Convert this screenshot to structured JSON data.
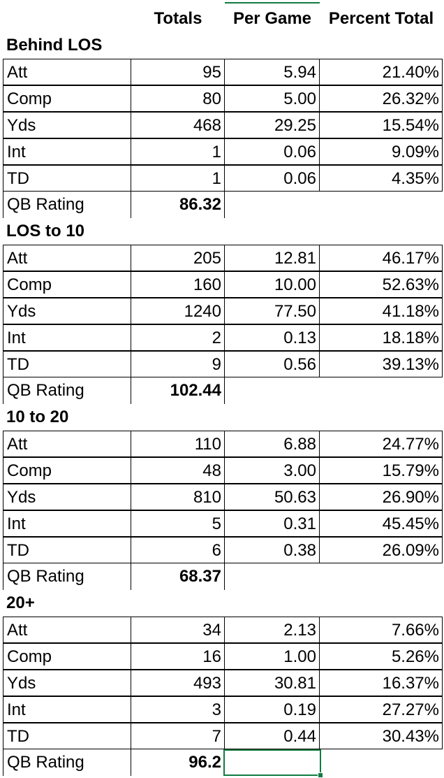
{
  "headers": {
    "totals": "Totals",
    "per_game": "Per Game",
    "percent_total": "Percent Total"
  },
  "sections": [
    {
      "title": "Behind LOS",
      "rows": [
        {
          "label": "Att",
          "totals": "95",
          "per_game": "5.94",
          "percent": "21.40%"
        },
        {
          "label": "Comp",
          "totals": "80",
          "per_game": "5.00",
          "percent": "26.32%"
        },
        {
          "label": "Yds",
          "totals": "468",
          "per_game": "29.25",
          "percent": "15.54%"
        },
        {
          "label": "Int",
          "totals": "1",
          "per_game": "0.06",
          "percent": "9.09%"
        },
        {
          "label": "TD",
          "totals": "1",
          "per_game": "0.06",
          "percent": "4.35%"
        }
      ],
      "rating_label": "QB Rating",
      "rating_value": "86.32"
    },
    {
      "title": "LOS to 10",
      "rows": [
        {
          "label": "Att",
          "totals": "205",
          "per_game": "12.81",
          "percent": "46.17%"
        },
        {
          "label": "Comp",
          "totals": "160",
          "per_game": "10.00",
          "percent": "52.63%"
        },
        {
          "label": "Yds",
          "totals": "1240",
          "per_game": "77.50",
          "percent": "41.18%"
        },
        {
          "label": "Int",
          "totals": "2",
          "per_game": "0.13",
          "percent": "18.18%"
        },
        {
          "label": "TD",
          "totals": "9",
          "per_game": "0.56",
          "percent": "39.13%"
        }
      ],
      "rating_label": "QB Rating",
      "rating_value": "102.44"
    },
    {
      "title": "10 to 20",
      "rows": [
        {
          "label": "Att",
          "totals": "110",
          "per_game": "6.88",
          "percent": "24.77%"
        },
        {
          "label": "Comp",
          "totals": "48",
          "per_game": "3.00",
          "percent": "15.79%"
        },
        {
          "label": "Yds",
          "totals": "810",
          "per_game": "50.63",
          "percent": "26.90%"
        },
        {
          "label": "Int",
          "totals": "5",
          "per_game": "0.31",
          "percent": "45.45%"
        },
        {
          "label": "TD",
          "totals": "6",
          "per_game": "0.38",
          "percent": "26.09%"
        }
      ],
      "rating_label": "QB Rating",
      "rating_value": "68.37"
    },
    {
      "title": "20+",
      "rows": [
        {
          "label": "Att",
          "totals": "34",
          "per_game": "2.13",
          "percent": "7.66%"
        },
        {
          "label": "Comp",
          "totals": "16",
          "per_game": "1.00",
          "percent": "5.26%"
        },
        {
          "label": "Yds",
          "totals": "493",
          "per_game": "30.81",
          "percent": "16.37%"
        },
        {
          "label": "Int",
          "totals": "3",
          "per_game": "0.19",
          "percent": "27.27%"
        },
        {
          "label": "TD",
          "totals": "7",
          "per_game": "0.44",
          "percent": "30.43%"
        }
      ],
      "rating_label": "QB Rating",
      "rating_value": "96.2"
    }
  ],
  "colors": {
    "selection": "#107c41",
    "gridline": "#e1e1e1"
  }
}
